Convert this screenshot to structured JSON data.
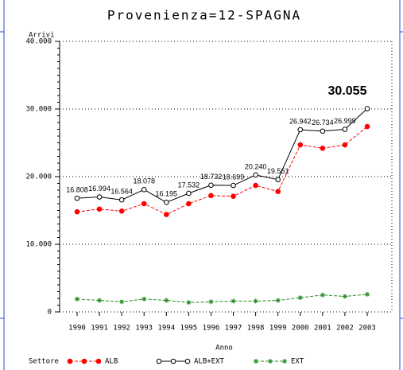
{
  "chart_data": {
    "type": "line",
    "title": "Provenienza=12-SPAGNA",
    "y_label": "Arrivi",
    "x_label": "Anno",
    "legend_title": "Settore",
    "categories": [
      "1990",
      "1991",
      "1992",
      "1993",
      "1994",
      "1995",
      "1996",
      "1997",
      "1998",
      "1999",
      "2000",
      "2001",
      "2002",
      "2003"
    ],
    "ylim": [
      0,
      40000
    ],
    "yticks": [
      0,
      {
        "value": 10000,
        "label": "10.000"
      },
      {
        "value": 20000,
        "label": "20.000"
      },
      {
        "value": 30000,
        "label": "30.000"
      },
      {
        "value": 40000,
        "label": "40.000"
      }
    ],
    "grid": true,
    "series": [
      {
        "name": "ALB",
        "color": "#ff0000",
        "marker": "filled-circle",
        "dashed": true,
        "values": [
          14800,
          15200,
          14900,
          16000,
          14400,
          16000,
          17200,
          17100,
          18700,
          17800,
          24700,
          24200,
          24700,
          27400
        ]
      },
      {
        "name": "ALB+EXT",
        "color": "#000000",
        "marker": "open-circle",
        "dashed": false,
        "values": [
          16808,
          16994,
          16564,
          18078,
          16195,
          17532,
          18732,
          18699,
          20240,
          19561,
          26942,
          26734,
          26999,
          30055
        ],
        "value_labels": [
          "16.808",
          "16.994",
          "16.564",
          "18.078",
          "16.195",
          "17.532",
          "18.732",
          "18.699",
          "20.240",
          "19.561",
          "26.942",
          "26.734",
          "26.999",
          "30.055"
        ]
      },
      {
        "name": "EXT",
        "color": "#228b22",
        "marker": "star",
        "dashed": true,
        "values": [
          1900,
          1700,
          1500,
          1900,
          1700,
          1400,
          1500,
          1600,
          1600,
          1700,
          2100,
          2500,
          2300,
          2600
        ]
      }
    ]
  }
}
